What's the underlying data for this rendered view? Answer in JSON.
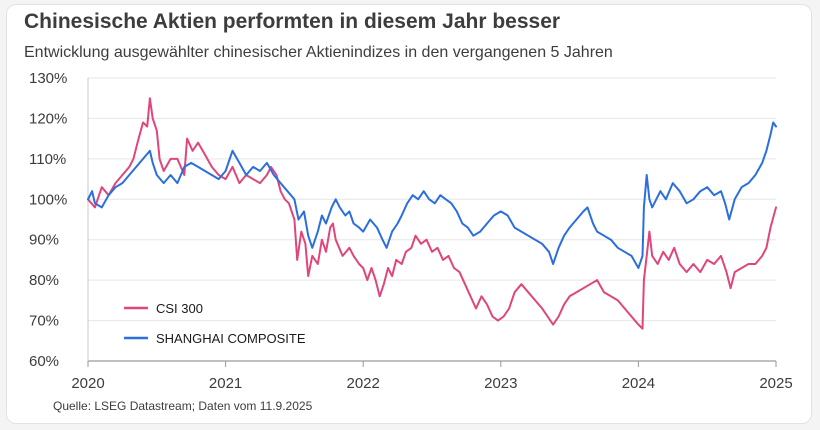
{
  "title": "Chinesische Aktien performten in diesem Jahr besser",
  "subtitle": "Entwicklung ausgewählter chinesischer Aktienindizes in den vergangenen 5 Jahren",
  "source": "Quelle: LSEG Datastream; Daten vom 11.9.2025",
  "chart_data": {
    "type": "line",
    "title": "Chinesische Aktien performten in diesem Jahr besser",
    "subtitle": "Entwicklung ausgewählter chinesischer Aktienindizes in den vergangenen 5 Jahren",
    "xlabel": "",
    "ylabel": "",
    "xlim": [
      2020,
      2025
    ],
    "ylim": [
      60,
      130
    ],
    "x_ticks": [
      2020,
      2021,
      2022,
      2023,
      2024,
      2025
    ],
    "x_tick_labels": [
      "2020",
      "2021",
      "2022",
      "2023",
      "2024",
      "2025"
    ],
    "y_ticks": [
      60,
      70,
      80,
      90,
      100,
      110,
      120,
      130
    ],
    "y_tick_labels": [
      "60%",
      "70%",
      "80%",
      "90%",
      "100%",
      "110%",
      "120%",
      "130%"
    ],
    "grid": "horizontal",
    "legend": "bottom-left",
    "series": [
      {
        "name": "CSI 300",
        "color": "#e0457b",
        "points": [
          [
            2020.0,
            100
          ],
          [
            2020.05,
            98
          ],
          [
            2020.1,
            103
          ],
          [
            2020.15,
            101
          ],
          [
            2020.2,
            104
          ],
          [
            2020.25,
            106
          ],
          [
            2020.3,
            108
          ],
          [
            2020.33,
            110
          ],
          [
            2020.36,
            114
          ],
          [
            2020.4,
            119
          ],
          [
            2020.43,
            118
          ],
          [
            2020.45,
            125
          ],
          [
            2020.47,
            120
          ],
          [
            2020.5,
            117
          ],
          [
            2020.52,
            110
          ],
          [
            2020.55,
            107
          ],
          [
            2020.6,
            110
          ],
          [
            2020.65,
            110
          ],
          [
            2020.7,
            106
          ],
          [
            2020.72,
            115
          ],
          [
            2020.76,
            112
          ],
          [
            2020.8,
            114
          ],
          [
            2020.85,
            111
          ],
          [
            2020.9,
            108
          ],
          [
            2020.95,
            106
          ],
          [
            2021.0,
            105
          ],
          [
            2021.05,
            108
          ],
          [
            2021.1,
            104
          ],
          [
            2021.15,
            106
          ],
          [
            2021.2,
            105
          ],
          [
            2021.25,
            104
          ],
          [
            2021.3,
            106
          ],
          [
            2021.33,
            108
          ],
          [
            2021.37,
            106
          ],
          [
            2021.4,
            102
          ],
          [
            2021.43,
            100
          ],
          [
            2021.46,
            99
          ],
          [
            2021.5,
            95
          ],
          [
            2021.52,
            85
          ],
          [
            2021.55,
            92
          ],
          [
            2021.58,
            89
          ],
          [
            2021.6,
            81
          ],
          [
            2021.63,
            86
          ],
          [
            2021.67,
            84
          ],
          [
            2021.7,
            90
          ],
          [
            2021.73,
            87
          ],
          [
            2021.76,
            93
          ],
          [
            2021.78,
            94
          ],
          [
            2021.8,
            90
          ],
          [
            2021.85,
            86
          ],
          [
            2021.9,
            88
          ],
          [
            2021.93,
            86
          ],
          [
            2021.97,
            84
          ],
          [
            2022.0,
            83
          ],
          [
            2022.03,
            80
          ],
          [
            2022.06,
            83
          ],
          [
            2022.09,
            80
          ],
          [
            2022.12,
            76
          ],
          [
            2022.15,
            79
          ],
          [
            2022.18,
            83
          ],
          [
            2022.21,
            81
          ],
          [
            2022.24,
            85
          ],
          [
            2022.28,
            84
          ],
          [
            2022.31,
            87
          ],
          [
            2022.35,
            88
          ],
          [
            2022.38,
            91
          ],
          [
            2022.42,
            89
          ],
          [
            2022.46,
            90
          ],
          [
            2022.5,
            87
          ],
          [
            2022.54,
            88
          ],
          [
            2022.58,
            85
          ],
          [
            2022.62,
            86
          ],
          [
            2022.66,
            83
          ],
          [
            2022.7,
            82
          ],
          [
            2022.74,
            79
          ],
          [
            2022.78,
            76
          ],
          [
            2022.82,
            73
          ],
          [
            2022.86,
            76
          ],
          [
            2022.9,
            74
          ],
          [
            2022.94,
            71
          ],
          [
            2022.98,
            70
          ],
          [
            2023.02,
            71
          ],
          [
            2023.06,
            73
          ],
          [
            2023.1,
            77
          ],
          [
            2023.15,
            79
          ],
          [
            2023.2,
            77
          ],
          [
            2023.25,
            75
          ],
          [
            2023.3,
            73
          ],
          [
            2023.34,
            71
          ],
          [
            2023.38,
            69
          ],
          [
            2023.42,
            71
          ],
          [
            2023.46,
            74
          ],
          [
            2023.5,
            76
          ],
          [
            2023.55,
            77
          ],
          [
            2023.6,
            78
          ],
          [
            2023.65,
            79
          ],
          [
            2023.7,
            80
          ],
          [
            2023.75,
            77
          ],
          [
            2023.8,
            76
          ],
          [
            2023.85,
            75
          ],
          [
            2023.9,
            73
          ],
          [
            2023.95,
            71
          ],
          [
            2024.0,
            69
          ],
          [
            2024.03,
            68
          ],
          [
            2024.04,
            80
          ],
          [
            2024.06,
            86
          ],
          [
            2024.08,
            92
          ],
          [
            2024.1,
            86
          ],
          [
            2024.14,
            84
          ],
          [
            2024.18,
            87
          ],
          [
            2024.22,
            85
          ],
          [
            2024.26,
            88
          ],
          [
            2024.3,
            84
          ],
          [
            2024.35,
            82
          ],
          [
            2024.4,
            84
          ],
          [
            2024.45,
            82
          ],
          [
            2024.5,
            85
          ],
          [
            2024.55,
            84
          ],
          [
            2024.6,
            86
          ],
          [
            2024.64,
            82
          ],
          [
            2024.67,
            78
          ],
          [
            2024.7,
            82
          ],
          [
            2024.75,
            83
          ],
          [
            2024.8,
            84
          ],
          [
            2024.85,
            84
          ],
          [
            2024.9,
            86
          ],
          [
            2024.93,
            88
          ],
          [
            2024.96,
            93
          ],
          [
            2025.0,
            98
          ]
        ]
      },
      {
        "name": "SHANGHAI COMPOSITE",
        "color": "#2b6fdd",
        "points": [
          [
            2020.0,
            100
          ],
          [
            2020.03,
            102
          ],
          [
            2020.05,
            99
          ],
          [
            2020.1,
            98
          ],
          [
            2020.15,
            101
          ],
          [
            2020.2,
            103
          ],
          [
            2020.25,
            104
          ],
          [
            2020.3,
            106
          ],
          [
            2020.35,
            108
          ],
          [
            2020.4,
            110
          ],
          [
            2020.45,
            112
          ],
          [
            2020.47,
            109
          ],
          [
            2020.5,
            106
          ],
          [
            2020.55,
            104
          ],
          [
            2020.6,
            106
          ],
          [
            2020.65,
            104
          ],
          [
            2020.7,
            108
          ],
          [
            2020.75,
            109
          ],
          [
            2020.8,
            108
          ],
          [
            2020.85,
            107
          ],
          [
            2020.9,
            106
          ],
          [
            2020.95,
            105
          ],
          [
            2021.0,
            107
          ],
          [
            2021.05,
            112
          ],
          [
            2021.1,
            109
          ],
          [
            2021.15,
            106
          ],
          [
            2021.2,
            108
          ],
          [
            2021.25,
            107
          ],
          [
            2021.3,
            109
          ],
          [
            2021.35,
            106
          ],
          [
            2021.4,
            104
          ],
          [
            2021.45,
            102
          ],
          [
            2021.5,
            100
          ],
          [
            2021.53,
            95
          ],
          [
            2021.57,
            97
          ],
          [
            2021.6,
            91
          ],
          [
            2021.63,
            88
          ],
          [
            2021.67,
            92
          ],
          [
            2021.7,
            96
          ],
          [
            2021.73,
            94
          ],
          [
            2021.77,
            98
          ],
          [
            2021.8,
            100
          ],
          [
            2021.83,
            98
          ],
          [
            2021.87,
            96
          ],
          [
            2021.9,
            97
          ],
          [
            2021.93,
            94
          ],
          [
            2021.97,
            93
          ],
          [
            2022.0,
            92
          ],
          [
            2022.05,
            95
          ],
          [
            2022.1,
            93
          ],
          [
            2022.14,
            90
          ],
          [
            2022.17,
            88
          ],
          [
            2022.21,
            92
          ],
          [
            2022.25,
            94
          ],
          [
            2022.28,
            96
          ],
          [
            2022.32,
            99
          ],
          [
            2022.36,
            101
          ],
          [
            2022.4,
            100
          ],
          [
            2022.44,
            102
          ],
          [
            2022.48,
            100
          ],
          [
            2022.52,
            99
          ],
          [
            2022.56,
            101
          ],
          [
            2022.6,
            100
          ],
          [
            2022.64,
            99
          ],
          [
            2022.68,
            97
          ],
          [
            2022.72,
            94
          ],
          [
            2022.76,
            93
          ],
          [
            2022.8,
            91
          ],
          [
            2022.85,
            92
          ],
          [
            2022.9,
            94
          ],
          [
            2022.95,
            96
          ],
          [
            2023.0,
            97
          ],
          [
            2023.05,
            96
          ],
          [
            2023.1,
            93
          ],
          [
            2023.15,
            92
          ],
          [
            2023.2,
            91
          ],
          [
            2023.25,
            90
          ],
          [
            2023.3,
            89
          ],
          [
            2023.35,
            87
          ],
          [
            2023.38,
            84
          ],
          [
            2023.42,
            88
          ],
          [
            2023.46,
            91
          ],
          [
            2023.5,
            93
          ],
          [
            2023.55,
            95
          ],
          [
            2023.6,
            97
          ],
          [
            2023.63,
            98
          ],
          [
            2023.67,
            94
          ],
          [
            2023.7,
            92
          ],
          [
            2023.75,
            91
          ],
          [
            2023.8,
            90
          ],
          [
            2023.85,
            88
          ],
          [
            2023.9,
            87
          ],
          [
            2023.95,
            86
          ],
          [
            2024.0,
            83
          ],
          [
            2024.03,
            86
          ],
          [
            2024.04,
            98
          ],
          [
            2024.06,
            106
          ],
          [
            2024.08,
            100
          ],
          [
            2024.1,
            98
          ],
          [
            2024.13,
            100
          ],
          [
            2024.16,
            102
          ],
          [
            2024.2,
            100
          ],
          [
            2024.25,
            104
          ],
          [
            2024.3,
            102
          ],
          [
            2024.35,
            99
          ],
          [
            2024.4,
            100
          ],
          [
            2024.45,
            102
          ],
          [
            2024.5,
            103
          ],
          [
            2024.55,
            101
          ],
          [
            2024.6,
            102
          ],
          [
            2024.63,
            99
          ],
          [
            2024.66,
            95
          ],
          [
            2024.7,
            100
          ],
          [
            2024.75,
            103
          ],
          [
            2024.8,
            104
          ],
          [
            2024.85,
            106
          ],
          [
            2024.9,
            109
          ],
          [
            2024.93,
            112
          ],
          [
            2024.96,
            116
          ],
          [
            2024.98,
            119
          ],
          [
            2025.0,
            118
          ]
        ]
      }
    ]
  }
}
